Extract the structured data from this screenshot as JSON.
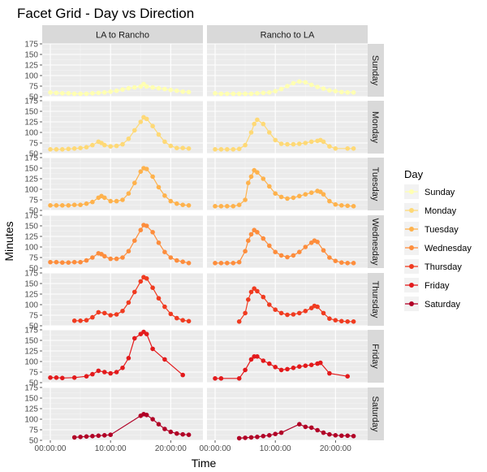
{
  "chart_data": {
    "type": "line",
    "title": "Facet Grid - Day vs Direction",
    "xlabel": "Time",
    "ylabel": "Minutes",
    "xlim": [
      0,
      24
    ],
    "ylim": [
      50,
      175
    ],
    "y_ticks": [
      50,
      75,
      100,
      125,
      150,
      175
    ],
    "x_ticks": [
      {
        "value": 0,
        "label": "00:00:00"
      },
      {
        "value": 10,
        "label": "10:00:00"
      },
      {
        "value": 20,
        "label": "20:00:00"
      }
    ],
    "columns": [
      "LA to Rancho",
      "Rancho to LA"
    ],
    "legend": {
      "title": "Day",
      "position": "right",
      "entries": [
        "Sunday",
        "Monday",
        "Tuesday",
        "Wednesday",
        "Thursday",
        "Friday",
        "Saturday"
      ]
    },
    "colors": {
      "Sunday": "#FFFFB2",
      "Monday": "#FED976",
      "Tuesday": "#FEB24C",
      "Wednesday": "#FD8D3C",
      "Thursday": "#F03B20",
      "Friday": "#E31A1C",
      "Saturday": "#B10026"
    },
    "series": [
      {
        "day": "Sunday",
        "LA to Rancho": [
          [
            0,
            60
          ],
          [
            1,
            59
          ],
          [
            2,
            58
          ],
          [
            3,
            58
          ],
          [
            4,
            57
          ],
          [
            5,
            57
          ],
          [
            6,
            57
          ],
          [
            7,
            58
          ],
          [
            8,
            59
          ],
          [
            9,
            60
          ],
          [
            10,
            62
          ],
          [
            11,
            64
          ],
          [
            12,
            67
          ],
          [
            13,
            70
          ],
          [
            14,
            72
          ],
          [
            15,
            74
          ],
          [
            15.5,
            80
          ],
          [
            16,
            74
          ],
          [
            17,
            72
          ],
          [
            18,
            70
          ],
          [
            19,
            68
          ],
          [
            20,
            66
          ],
          [
            21,
            64
          ],
          [
            22,
            62
          ],
          [
            23,
            61
          ]
        ],
        "Rancho to LA": [
          [
            0,
            58
          ],
          [
            1,
            57
          ],
          [
            2,
            57
          ],
          [
            3,
            57
          ],
          [
            4,
            57
          ],
          [
            5,
            57
          ],
          [
            6,
            57
          ],
          [
            7,
            58
          ],
          [
            8,
            59
          ],
          [
            9,
            60
          ],
          [
            10,
            63
          ],
          [
            11,
            68
          ],
          [
            12,
            75
          ],
          [
            13,
            82
          ],
          [
            14,
            86
          ],
          [
            15,
            84
          ],
          [
            16,
            78
          ],
          [
            17,
            73
          ],
          [
            18,
            69
          ],
          [
            19,
            65
          ],
          [
            20,
            63
          ],
          [
            21,
            61
          ],
          [
            22,
            60
          ],
          [
            23,
            60
          ]
        ]
      },
      {
        "day": "Monday",
        "LA to Rancho": [
          [
            0,
            60
          ],
          [
            1,
            60
          ],
          [
            2,
            60
          ],
          [
            3,
            61
          ],
          [
            4,
            62
          ],
          [
            5,
            63
          ],
          [
            6,
            65
          ],
          [
            7,
            70
          ],
          [
            8,
            78
          ],
          [
            8.5,
            75
          ],
          [
            9,
            70
          ],
          [
            10,
            67
          ],
          [
            11,
            68
          ],
          [
            12,
            72
          ],
          [
            13,
            85
          ],
          [
            14,
            105
          ],
          [
            15,
            125
          ],
          [
            15.5,
            136
          ],
          [
            16,
            132
          ],
          [
            17,
            115
          ],
          [
            18,
            95
          ],
          [
            19,
            78
          ],
          [
            20,
            68
          ],
          [
            21,
            63
          ],
          [
            22,
            63
          ],
          [
            23,
            62
          ]
        ],
        "Rancho to LA": [
          [
            0,
            60
          ],
          [
            1,
            60
          ],
          [
            2,
            60
          ],
          [
            3,
            60
          ],
          [
            4,
            61
          ],
          [
            5,
            70
          ],
          [
            6,
            100
          ],
          [
            6.5,
            120
          ],
          [
            7,
            130
          ],
          [
            8,
            120
          ],
          [
            9,
            100
          ],
          [
            10,
            82
          ],
          [
            11,
            73
          ],
          [
            12,
            72
          ],
          [
            13,
            72
          ],
          [
            14,
            73
          ],
          [
            15,
            75
          ],
          [
            16,
            78
          ],
          [
            17,
            80
          ],
          [
            17.5,
            82
          ],
          [
            18,
            78
          ],
          [
            19,
            67
          ],
          [
            20,
            62
          ],
          [
            22,
            62
          ],
          [
            23,
            62
          ]
        ]
      },
      {
        "day": "Tuesday",
        "LA to Rancho": [
          [
            0,
            62
          ],
          [
            1,
            62
          ],
          [
            2,
            62
          ],
          [
            3,
            62
          ],
          [
            4,
            63
          ],
          [
            5,
            63
          ],
          [
            6,
            66
          ],
          [
            7,
            70
          ],
          [
            8,
            80
          ],
          [
            8.5,
            84
          ],
          [
            9,
            80
          ],
          [
            10,
            72
          ],
          [
            11,
            72
          ],
          [
            12,
            75
          ],
          [
            13,
            90
          ],
          [
            14,
            115
          ],
          [
            15,
            142
          ],
          [
            15.5,
            150
          ],
          [
            16,
            148
          ],
          [
            17,
            130
          ],
          [
            18,
            105
          ],
          [
            19,
            85
          ],
          [
            20,
            72
          ],
          [
            21,
            66
          ],
          [
            22,
            63
          ],
          [
            23,
            62
          ]
        ],
        "Rancho to LA": [
          [
            0,
            60
          ],
          [
            1,
            60
          ],
          [
            2,
            60
          ],
          [
            3,
            60
          ],
          [
            4,
            63
          ],
          [
            5,
            75
          ],
          [
            5.5,
            115
          ],
          [
            6,
            130
          ],
          [
            6.5,
            145
          ],
          [
            7,
            140
          ],
          [
            8,
            125
          ],
          [
            9,
            107
          ],
          [
            10,
            90
          ],
          [
            11,
            82
          ],
          [
            12,
            78
          ],
          [
            13,
            80
          ],
          [
            14,
            84
          ],
          [
            15,
            88
          ],
          [
            16,
            92
          ],
          [
            17,
            96
          ],
          [
            17.5,
            94
          ],
          [
            18,
            88
          ],
          [
            19,
            72
          ],
          [
            20,
            64
          ],
          [
            21,
            62
          ],
          [
            22,
            61
          ],
          [
            23,
            60
          ]
        ]
      },
      {
        "day": "Wednesday",
        "LA to Rancho": [
          [
            0,
            64
          ],
          [
            1,
            64
          ],
          [
            2,
            63
          ],
          [
            3,
            63
          ],
          [
            4,
            64
          ],
          [
            5,
            64
          ],
          [
            6,
            68
          ],
          [
            7,
            75
          ],
          [
            8,
            85
          ],
          [
            8.5,
            83
          ],
          [
            9,
            78
          ],
          [
            10,
            72
          ],
          [
            11,
            72
          ],
          [
            12,
            75
          ],
          [
            13,
            90
          ],
          [
            14,
            115
          ],
          [
            15,
            140
          ],
          [
            15.5,
            152
          ],
          [
            16,
            150
          ],
          [
            17,
            135
          ],
          [
            18,
            110
          ],
          [
            19,
            88
          ],
          [
            20,
            75
          ],
          [
            21,
            68
          ],
          [
            22,
            65
          ],
          [
            23,
            62
          ]
        ],
        "Rancho to LA": [
          [
            0,
            62
          ],
          [
            1,
            62
          ],
          [
            2,
            62
          ],
          [
            3,
            62
          ],
          [
            4,
            64
          ],
          [
            5,
            90
          ],
          [
            5.5,
            115
          ],
          [
            6,
            130
          ],
          [
            6.5,
            140
          ],
          [
            7,
            135
          ],
          [
            8,
            120
          ],
          [
            9,
            103
          ],
          [
            10,
            88
          ],
          [
            11,
            80
          ],
          [
            12,
            76
          ],
          [
            13,
            80
          ],
          [
            14,
            88
          ],
          [
            15,
            100
          ],
          [
            16,
            110
          ],
          [
            16.5,
            115
          ],
          [
            17,
            112
          ],
          [
            18,
            92
          ],
          [
            19,
            75
          ],
          [
            20,
            67
          ],
          [
            21,
            63
          ],
          [
            22,
            62
          ],
          [
            23,
            62
          ]
        ]
      },
      {
        "day": "Thursday",
        "LA to Rancho": [
          [
            4,
            62
          ],
          [
            5,
            62
          ],
          [
            6,
            63
          ],
          [
            7,
            70
          ],
          [
            8,
            82
          ],
          [
            9,
            80
          ],
          [
            10,
            75
          ],
          [
            11,
            77
          ],
          [
            12,
            85
          ],
          [
            13,
            105
          ],
          [
            14,
            130
          ],
          [
            15,
            155
          ],
          [
            15.5,
            165
          ],
          [
            16,
            162
          ],
          [
            17,
            140
          ],
          [
            18,
            115
          ],
          [
            19,
            95
          ],
          [
            20,
            78
          ],
          [
            21,
            68
          ],
          [
            22,
            63
          ],
          [
            23,
            61
          ]
        ],
        "Rancho to LA": [
          [
            4,
            60
          ],
          [
            5,
            80
          ],
          [
            5.5,
            112
          ],
          [
            6,
            130
          ],
          [
            6.5,
            138
          ],
          [
            7,
            132
          ],
          [
            8,
            118
          ],
          [
            9,
            100
          ],
          [
            10,
            88
          ],
          [
            11,
            80
          ],
          [
            12,
            76
          ],
          [
            13,
            77
          ],
          [
            14,
            80
          ],
          [
            15,
            85
          ],
          [
            16,
            92
          ],
          [
            16.5,
            97
          ],
          [
            17,
            95
          ],
          [
            18,
            80
          ],
          [
            19,
            67
          ],
          [
            20,
            63
          ],
          [
            21,
            61
          ],
          [
            22,
            60
          ],
          [
            23,
            60
          ]
        ]
      },
      {
        "day": "Friday",
        "LA to Rancho": [
          [
            0,
            62
          ],
          [
            1,
            62
          ],
          [
            2,
            61
          ],
          [
            4,
            62
          ],
          [
            6,
            65
          ],
          [
            7,
            70
          ],
          [
            8,
            78
          ],
          [
            9,
            75
          ],
          [
            10,
            72
          ],
          [
            11,
            75
          ],
          [
            12,
            85
          ],
          [
            13,
            108
          ],
          [
            14,
            155
          ],
          [
            15,
            165
          ],
          [
            15.5,
            170
          ],
          [
            16,
            165
          ],
          [
            17,
            130
          ],
          [
            19,
            105
          ],
          [
            22,
            68
          ]
        ],
        "Rancho to LA": [
          [
            0,
            60
          ],
          [
            1,
            60
          ],
          [
            4,
            60
          ],
          [
            5,
            80
          ],
          [
            6,
            105
          ],
          [
            6.5,
            112
          ],
          [
            7,
            112
          ],
          [
            8,
            102
          ],
          [
            9,
            95
          ],
          [
            10,
            87
          ],
          [
            11,
            80
          ],
          [
            12,
            82
          ],
          [
            13,
            85
          ],
          [
            14,
            88
          ],
          [
            15,
            90
          ],
          [
            16,
            92
          ],
          [
            17,
            95
          ],
          [
            17.5,
            97
          ],
          [
            19,
            72
          ],
          [
            22,
            65
          ]
        ]
      },
      {
        "day": "Saturday",
        "LA to Rancho": [
          [
            4,
            57
          ],
          [
            5,
            58
          ],
          [
            6,
            59
          ],
          [
            7,
            60
          ],
          [
            8,
            61
          ],
          [
            9,
            62
          ],
          [
            10,
            63
          ],
          [
            15,
            108
          ],
          [
            15.5,
            112
          ],
          [
            16,
            110
          ],
          [
            17,
            100
          ],
          [
            18,
            88
          ],
          [
            19,
            77
          ],
          [
            20,
            70
          ],
          [
            21,
            66
          ],
          [
            22,
            64
          ],
          [
            23,
            63
          ]
        ],
        "Rancho to LA": [
          [
            4,
            55
          ],
          [
            5,
            56
          ],
          [
            6,
            57
          ],
          [
            7,
            58
          ],
          [
            8,
            60
          ],
          [
            9,
            62
          ],
          [
            10,
            65
          ],
          [
            11,
            68
          ],
          [
            14,
            88
          ],
          [
            15,
            82
          ],
          [
            16,
            80
          ],
          [
            17,
            74
          ],
          [
            18,
            68
          ],
          [
            19,
            64
          ],
          [
            20,
            62
          ],
          [
            21,
            61
          ],
          [
            22,
            61
          ],
          [
            23,
            60
          ]
        ]
      }
    ]
  }
}
